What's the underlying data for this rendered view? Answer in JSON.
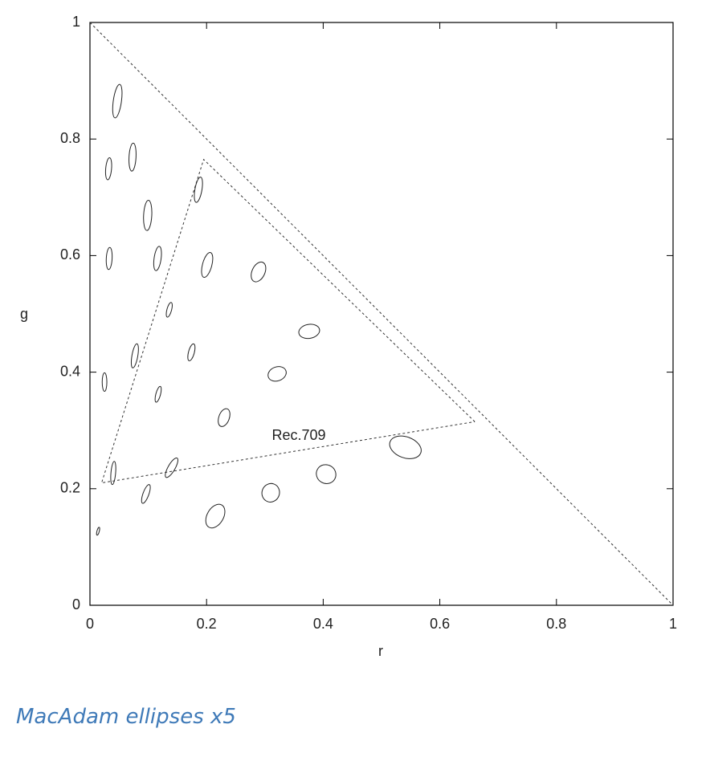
{
  "chart_data": {
    "type": "ellipse",
    "x_label": "r",
    "y_label": "g",
    "xlim": [
      0,
      1
    ],
    "ylim": [
      0,
      1
    ],
    "xticks": [
      0,
      0.2,
      0.4,
      0.6,
      0.8,
      1
    ],
    "yticks": [
      0,
      0.2,
      0.4,
      0.6,
      0.8,
      1
    ],
    "ellipses": {
      "x": [
        0.047,
        0.032,
        0.073,
        0.186,
        0.099,
        0.033,
        0.116,
        0.201,
        0.289,
        0.136,
        0.376,
        0.077,
        0.174,
        0.321,
        0.025,
        0.117,
        0.23,
        0.541,
        0.04,
        0.14,
        0.405,
        0.096,
        0.31,
        0.215,
        0.014
      ],
      "y": [
        0.865,
        0.749,
        0.769,
        0.713,
        0.669,
        0.595,
        0.595,
        0.584,
        0.572,
        0.507,
        0.47,
        0.428,
        0.434,
        0.397,
        0.383,
        0.362,
        0.322,
        0.271,
        0.227,
        0.236,
        0.225,
        0.191,
        0.193,
        0.153,
        0.127
      ],
      "rx": [
        0.007,
        0.005,
        0.006,
        0.006,
        0.007,
        0.005,
        0.006,
        0.008,
        0.011,
        0.004,
        0.018,
        0.005,
        0.005,
        0.016,
        0.004,
        0.004,
        0.009,
        0.028,
        0.004,
        0.006,
        0.017,
        0.005,
        0.015,
        0.014,
        0.002
      ],
      "ry": [
        0.029,
        0.019,
        0.024,
        0.022,
        0.026,
        0.019,
        0.021,
        0.022,
        0.018,
        0.013,
        0.012,
        0.021,
        0.015,
        0.012,
        0.016,
        0.014,
        0.016,
        0.018,
        0.02,
        0.019,
        0.016,
        0.017,
        0.016,
        0.022,
        0.007
      ],
      "angle": [
        8,
        5,
        3,
        10,
        3,
        3,
        8,
        15,
        25,
        15,
        -10,
        10,
        15,
        -20,
        0,
        15,
        20,
        20,
        5,
        30,
        30,
        20,
        20,
        30,
        15
      ]
    },
    "lines": [
      {
        "x": [
          0,
          1
        ],
        "y": [
          1,
          0
        ]
      },
      {
        "x": [
          0.66,
          0.195,
          0.02,
          0.66
        ],
        "y": [
          0.315,
          0.765,
          0.21,
          0.315
        ]
      }
    ],
    "annotation": "Rec.709"
  },
  "caption": "MacAdam ellipses x5"
}
